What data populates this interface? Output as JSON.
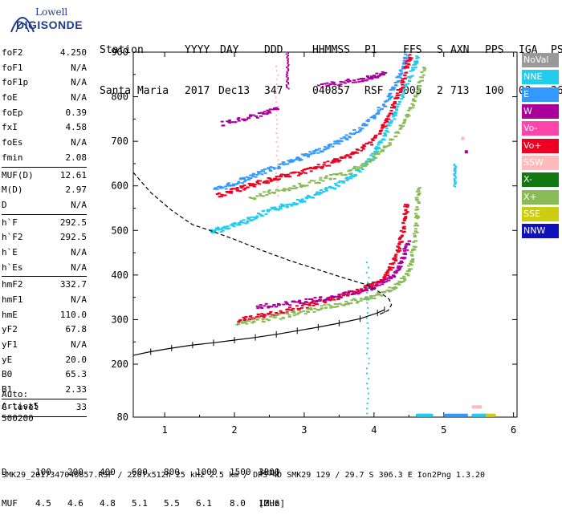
{
  "logo": {
    "brand_top": "Lowell",
    "brand_bottom": "DIGISONDE",
    "icon": "digisonde-arc-icon"
  },
  "header": {
    "row1": [
      "Station",
      "YYYY",
      "DAY",
      "DDD",
      "HHMMSS",
      "P1",
      "FFS",
      "S",
      "AXN",
      "PPS",
      "IGA",
      "PS"
    ],
    "row2": [
      "Santa Maria",
      "2017",
      "Dec13",
      "347",
      "040857",
      "RSF",
      "005",
      "2",
      "713",
      "100",
      "03+",
      "36"
    ]
  },
  "params": [
    {
      "name": "foF2",
      "value": "4.250"
    },
    {
      "name": "foF1",
      "value": "N/A"
    },
    {
      "name": "foF1p",
      "value": "N/A"
    },
    {
      "name": "foE",
      "value": "N/A"
    },
    {
      "name": "foEp",
      "value": "0.39"
    },
    {
      "name": "fxI",
      "value": "4.58"
    },
    {
      "name": "foEs",
      "value": "N/A"
    },
    {
      "name": "fmin",
      "value": "2.08"
    },
    {
      "sep": true
    },
    {
      "name": "MUF(D)",
      "value": "12.61"
    },
    {
      "name": "M(D)",
      "value": "2.97"
    },
    {
      "name": "D",
      "value": "N/A"
    },
    {
      "sep": true
    },
    {
      "name": "h`F",
      "value": "292.5"
    },
    {
      "name": "h`F2",
      "value": "292.5"
    },
    {
      "name": "h`E",
      "value": "N/A"
    },
    {
      "name": "h`Es",
      "value": "N/A"
    },
    {
      "sep": true
    },
    {
      "name": "hmF2",
      "value": "332.7"
    },
    {
      "name": "hmF1",
      "value": "N/A"
    },
    {
      "name": "hmE",
      "value": "110.0"
    },
    {
      "name": "yF2",
      "value": "67.8"
    },
    {
      "name": "yF1",
      "value": "N/A"
    },
    {
      "name": "yE",
      "value": "20.0"
    },
    {
      "name": "B0",
      "value": "65.3"
    },
    {
      "name": "B1",
      "value": "2.33"
    },
    {
      "sep": true
    },
    {
      "name": "C-level",
      "value": "33"
    },
    {
      "sep": true
    }
  ],
  "auto": {
    "label": "Auto:",
    "software": "Artist5",
    "version": "500200"
  },
  "legend": [
    {
      "label": "NoVal",
      "bg": "#999999",
      "fg": "#ffffff"
    },
    {
      "label": "NNE",
      "bg": "#22ccee",
      "fg": "#ffffff"
    },
    {
      "label": "E",
      "bg": "#3399ff",
      "fg": "#ffffff"
    },
    {
      "label": "W",
      "bg": "#aa0099",
      "fg": "#ffffff"
    },
    {
      "label": "Vo-",
      "bg": "#ff44aa",
      "fg": "#ffffff"
    },
    {
      "label": "Vo+",
      "bg": "#ee0022",
      "fg": "#ffffff"
    },
    {
      "label": "SSW",
      "bg": "#ffbbbb",
      "fg": "#ffffff"
    },
    {
      "label": "X-",
      "bg": "#117711",
      "fg": "#ffffff"
    },
    {
      "label": "X+",
      "bg": "#88bb55",
      "fg": "#ffffff"
    },
    {
      "label": "SSE",
      "bg": "#cccc11",
      "fg": "#ffffff"
    },
    {
      "label": "NNW",
      "bg": "#1111bb",
      "fg": "#ffffff"
    }
  ],
  "muf_table": {
    "d_label": "D",
    "d_values": [
      "100",
      "200",
      "400",
      "600",
      "800",
      "1000",
      "1500",
      "3000"
    ],
    "d_unit": "[km]",
    "muf_label": "MUF",
    "muf_values": [
      "4.5",
      "4.6",
      "4.8",
      "5.1",
      "5.5",
      "6.1",
      "8.0",
      "12.6"
    ],
    "muf_unit": "[MHz]"
  },
  "footer": "SMK29_2017347040857.RSF / 220fx512h 25 kHz 2.5 km / DPS-4D SMK29 129 / 29.7 S 306.3 E Ion2Png 1.3.20",
  "chart_data": {
    "type": "scatter",
    "xlim": [
      0.55,
      6.05
    ],
    "ylim": [
      80,
      900
    ],
    "xticks": [
      1,
      2,
      3,
      4,
      5,
      6
    ],
    "yticks": [
      80,
      200,
      300,
      400,
      500,
      600,
      700,
      800,
      900
    ],
    "grid": false,
    "traces": [
      {
        "color": "#22ccee",
        "points": [
          [
            1.65,
            500
          ],
          [
            1.8,
            505
          ],
          [
            2.0,
            515
          ],
          [
            2.2,
            527
          ],
          [
            2.4,
            540
          ],
          [
            2.6,
            552
          ],
          [
            2.8,
            562
          ],
          [
            3.0,
            572
          ],
          [
            3.2,
            585
          ],
          [
            3.4,
            600
          ],
          [
            3.6,
            618
          ],
          [
            3.8,
            640
          ],
          [
            3.95,
            665
          ],
          [
            4.05,
            690
          ],
          [
            4.15,
            720
          ],
          [
            4.25,
            755
          ],
          [
            4.35,
            790
          ],
          [
            4.45,
            830
          ],
          [
            4.55,
            870
          ],
          [
            4.6,
            890
          ]
        ]
      },
      {
        "color": "#3399ff",
        "points": [
          [
            1.7,
            592
          ],
          [
            1.9,
            603
          ],
          [
            2.1,
            615
          ],
          [
            2.3,
            627
          ],
          [
            2.5,
            640
          ],
          [
            2.7,
            652
          ],
          [
            2.9,
            663
          ],
          [
            3.1,
            675
          ],
          [
            3.3,
            688
          ],
          [
            3.5,
            703
          ],
          [
            3.7,
            722
          ],
          [
            3.9,
            745
          ],
          [
            4.05,
            770
          ],
          [
            4.2,
            800
          ],
          [
            4.3,
            835
          ],
          [
            4.4,
            870
          ],
          [
            4.45,
            895
          ]
        ]
      },
      {
        "color": "#ee0022",
        "points": [
          [
            1.75,
            580
          ],
          [
            1.95,
            590
          ],
          [
            2.15,
            600
          ],
          [
            2.35,
            610
          ],
          [
            2.55,
            618
          ],
          [
            2.75,
            625
          ],
          [
            2.95,
            633
          ],
          [
            3.15,
            642
          ],
          [
            3.35,
            652
          ],
          [
            3.55,
            665
          ],
          [
            3.75,
            680
          ],
          [
            3.95,
            702
          ],
          [
            4.1,
            730
          ],
          [
            4.2,
            760
          ],
          [
            4.3,
            795
          ],
          [
            4.38,
            830
          ],
          [
            4.45,
            870
          ],
          [
            4.5,
            895
          ]
        ]
      },
      {
        "color": "#ee0022",
        "points": [
          [
            2.05,
            300
          ],
          [
            2.3,
            308
          ],
          [
            2.55,
            316
          ],
          [
            2.8,
            325
          ],
          [
            3.05,
            335
          ],
          [
            3.3,
            346
          ],
          [
            3.55,
            356
          ],
          [
            3.8,
            368
          ],
          [
            4.0,
            382
          ],
          [
            4.15,
            400
          ],
          [
            4.25,
            425
          ],
          [
            4.32,
            455
          ],
          [
            4.38,
            490
          ],
          [
            4.42,
            530
          ],
          [
            4.45,
            565
          ]
        ]
      },
      {
        "color": "#88bb55",
        "points": [
          [
            2.0,
            292
          ],
          [
            2.3,
            300
          ],
          [
            2.6,
            308
          ],
          [
            2.9,
            317
          ],
          [
            3.2,
            327
          ],
          [
            3.5,
            337
          ],
          [
            3.8,
            347
          ],
          [
            4.05,
            358
          ],
          [
            4.25,
            372
          ],
          [
            4.4,
            392
          ],
          [
            4.5,
            420
          ],
          [
            4.55,
            460
          ],
          [
            4.58,
            510
          ],
          [
            4.6,
            560
          ],
          [
            4.62,
            600
          ]
        ]
      },
      {
        "color": "#88bb55",
        "points": [
          [
            2.2,
            575
          ],
          [
            2.5,
            587
          ],
          [
            2.8,
            598
          ],
          [
            3.1,
            610
          ],
          [
            3.4,
            622
          ],
          [
            3.7,
            638
          ],
          [
            3.95,
            660
          ],
          [
            4.15,
            690
          ],
          [
            4.35,
            730
          ],
          [
            4.5,
            770
          ],
          [
            4.62,
            820
          ],
          [
            4.7,
            870
          ]
        ]
      },
      {
        "color": "#aa0099",
        "points": [
          [
            2.3,
            330
          ],
          [
            2.6,
            336
          ],
          [
            2.9,
            342
          ],
          [
            3.2,
            348
          ],
          [
            3.5,
            356
          ],
          [
            3.8,
            366
          ],
          [
            4.05,
            380
          ],
          [
            4.25,
            398
          ],
          [
            4.35,
            420
          ],
          [
            4.42,
            450
          ],
          [
            4.47,
            480
          ]
        ]
      },
      {
        "color": "#aa0099",
        "points": [
          [
            3.2,
            825
          ],
          [
            3.5,
            832
          ],
          [
            3.8,
            840
          ],
          [
            4.0,
            848
          ],
          [
            4.15,
            855
          ]
        ]
      },
      {
        "color": "#aa0099",
        "points": [
          [
            1.8,
            740
          ],
          [
            2.1,
            752
          ],
          [
            2.4,
            764
          ],
          [
            2.6,
            775
          ]
        ]
      }
    ],
    "scattered": [
      {
        "color": "#22ccee",
        "x": 3.9,
        "y_range": [
          90,
          430
        ]
      },
      {
        "color": "#22ccee",
        "x": 5.15,
        "y_range": [
          600,
          650
        ]
      },
      {
        "color": "#aa0099",
        "x": 5.3,
        "y": 680
      },
      {
        "color": "#ffbbbb",
        "x": 5.25,
        "y": 710
      },
      {
        "color": "#aa0099",
        "x": 2.75,
        "y_range": [
          820,
          900
        ]
      },
      {
        "color": "#ffbbbb",
        "x": 2.6,
        "y_range": [
          580,
          880
        ]
      }
    ],
    "bottom_noise": [
      {
        "color": "#3399ff",
        "x_range": [
          5.0,
          5.3
        ],
        "y": 84
      },
      {
        "color": "#22ccee",
        "x_range": [
          5.4,
          5.6
        ],
        "y": 84
      },
      {
        "color": "#cccc11",
        "x_range": [
          5.6,
          5.7
        ],
        "y": 84
      },
      {
        "color": "#22ccee",
        "x_range": [
          4.6,
          4.8
        ],
        "y": 84
      },
      {
        "color": "#ffbbbb",
        "x_range": [
          5.4,
          5.5
        ],
        "y": 103
      }
    ],
    "profile_dashed": [
      [
        0.55,
        630
      ],
      [
        0.8,
        585
      ],
      [
        1.1,
        545
      ],
      [
        1.4,
        513
      ],
      [
        1.65,
        500
      ],
      [
        2.0,
        480
      ],
      [
        2.4,
        455
      ],
      [
        2.8,
        432
      ],
      [
        3.2,
        412
      ],
      [
        3.6,
        392
      ],
      [
        3.9,
        378
      ],
      [
        4.1,
        360
      ],
      [
        4.22,
        345
      ],
      [
        4.25,
        333
      ],
      [
        4.2,
        320
      ],
      [
        4.05,
        310
      ]
    ],
    "profile_solid": [
      [
        0.55,
        220
      ],
      [
        0.8,
        228
      ],
      [
        1.1,
        236
      ],
      [
        1.4,
        243
      ],
      [
        1.7,
        248
      ],
      [
        2.0,
        254
      ],
      [
        2.3,
        260
      ],
      [
        2.6,
        267
      ],
      [
        2.9,
        275
      ],
      [
        3.2,
        283
      ],
      [
        3.5,
        292
      ],
      [
        3.8,
        302
      ],
      [
        4.05,
        315
      ],
      [
        4.15,
        322
      ]
    ]
  }
}
